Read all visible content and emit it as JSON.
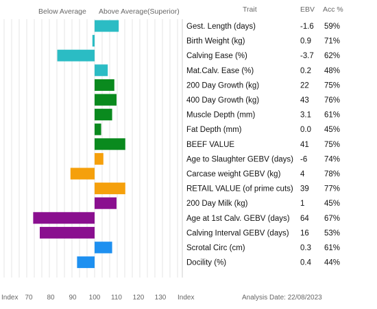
{
  "chart_data": {
    "type": "bar",
    "orientation": "horizontal",
    "headers": {
      "below_average": "Below Average",
      "above_average": "Above Average(Superior)",
      "trait": "Trait",
      "ebv": "EBV",
      "acc": "Acc %"
    },
    "baseline": 100,
    "xlim": [
      65,
      135
    ],
    "x_ticks": [
      70,
      80,
      90,
      100,
      110,
      120,
      130
    ],
    "x_axis_left_label": "Index",
    "x_axis_right_label": "Index",
    "grid": true,
    "footer": "Analysis Date: 22/08/2023",
    "rows": [
      {
        "trait": "Gest. Length (days)",
        "ebv": "-1.6",
        "acc": "59%",
        "index": 111,
        "color": "#2bbcc4"
      },
      {
        "trait": "Birth Weight (kg)",
        "ebv": "0.9",
        "acc": "71%",
        "index": 99,
        "color": "#2bbcc4"
      },
      {
        "trait": "Calving Ease (%)",
        "ebv": "-3.7",
        "acc": "62%",
        "index": 83,
        "color": "#2bbcc4"
      },
      {
        "trait": "Mat.Calv. Ease (%)",
        "ebv": "0.2",
        "acc": "48%",
        "index": 106,
        "color": "#2bbcc4"
      },
      {
        "trait": "200 Day Growth (kg)",
        "ebv": "22",
        "acc": "75%",
        "index": 109,
        "color": "#0a8a1e"
      },
      {
        "trait": "400 Day Growth (kg)",
        "ebv": "43",
        "acc": "76%",
        "index": 110,
        "color": "#0a8a1e"
      },
      {
        "trait": "Muscle Depth (mm)",
        "ebv": "3.1",
        "acc": "61%",
        "index": 108,
        "color": "#0a8a1e"
      },
      {
        "trait": "Fat Depth (mm)",
        "ebv": "0.0",
        "acc": "45%",
        "index": 103,
        "color": "#0a8a1e"
      },
      {
        "trait": "BEEF VALUE",
        "ebv": "41",
        "acc": "75%",
        "index": 114,
        "color": "#0a8a1e"
      },
      {
        "trait": "Age to Slaughter GEBV (days)",
        "ebv": "-6",
        "acc": "74%",
        "index": 104,
        "color": "#f5a00c"
      },
      {
        "trait": "Carcase weight GEBV (kg)",
        "ebv": "4",
        "acc": "78%",
        "index": 89,
        "color": "#f5a00c"
      },
      {
        "trait": "RETAIL VALUE (of prime cuts)",
        "ebv": "39",
        "acc": "77%",
        "index": 114,
        "color": "#f5a00c"
      },
      {
        "trait": "200 Day Milk (kg)",
        "ebv": "1",
        "acc": "45%",
        "index": 110,
        "color": "#8a0f8f"
      },
      {
        "trait": "Age at 1st Calv. GEBV (days)",
        "ebv": "64",
        "acc": "67%",
        "index": 72,
        "color": "#8a0f8f"
      },
      {
        "trait": "Calving Interval GEBV (days)",
        "ebv": "16",
        "acc": "53%",
        "index": 75,
        "color": "#8a0f8f"
      },
      {
        "trait": "Scrotal Circ (cm)",
        "ebv": "0.3",
        "acc": "61%",
        "index": 108,
        "color": "#1e90f0"
      },
      {
        "trait": "Docility (%)",
        "ebv": "0.4",
        "acc": "44%",
        "index": 92,
        "color": "#1e90f0"
      }
    ]
  }
}
